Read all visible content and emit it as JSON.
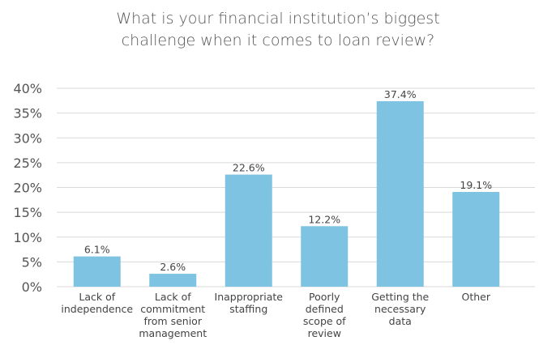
{
  "chart_data": {
    "type": "bar",
    "title": "What is your financial institution’s biggest challenge when it comes to loan review?",
    "title_lines": [
      "What is your financial institution’s biggest",
      "challenge when it comes to loan review?"
    ],
    "xlabel": "",
    "ylabel": "",
    "categories": [
      "Lack of independence",
      "Lack of commitment from senior management",
      "Inappropriate staffing",
      "Poorly defined scope of review",
      "Getting the necessary data",
      "Other"
    ],
    "category_label_lines": [
      [
        "Lack of",
        "independence"
      ],
      [
        "Lack of",
        "commitment",
        "from senior",
        "management"
      ],
      [
        "Inappropriate",
        "staffing"
      ],
      [
        "Poorly",
        "defined",
        "scope of",
        "review"
      ],
      [
        "Getting the",
        "necessary",
        "data"
      ],
      [
        "Other"
      ]
    ],
    "values": [
      6.1,
      2.6,
      22.6,
      12.2,
      37.4,
      19.1
    ],
    "data_labels": [
      "6.1%",
      "2.6%",
      "22.6%",
      "12.2%",
      "37.4%",
      "19.1%"
    ],
    "ylim": [
      0,
      40
    ],
    "yticks": [
      0,
      5,
      10,
      15,
      20,
      25,
      30,
      35,
      40
    ],
    "ytick_labels": [
      "0%",
      "5%",
      "10%",
      "15%",
      "20%",
      "25%",
      "30%",
      "35%",
      "40%"
    ],
    "grid": true,
    "legend": "none",
    "bar_color": "#7fc3e2",
    "grid_color": "#d9d9d9",
    "text_color": "#555555"
  }
}
